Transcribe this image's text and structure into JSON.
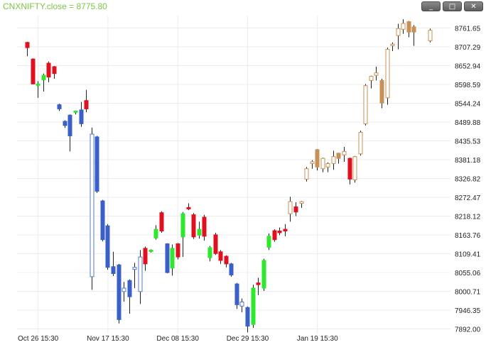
{
  "header": {
    "title": "CNXNIFTY.close = 8775.80",
    "buttons": [
      {
        "name": "minimize-button",
        "glyph": "_"
      },
      {
        "name": "maximize-button",
        "glyph": "□"
      },
      {
        "name": "close-button",
        "glyph": "✕"
      }
    ]
  },
  "colors": {
    "grid": "#ececec",
    "up_green": "#2ee82e",
    "down_red": "#e0101e",
    "blue": "#3a5fc8",
    "blue_hollow": "#5577cc",
    "tan": "#c79056",
    "wick": "#222222"
  },
  "chart_data": {
    "type": "candlestick",
    "title": "CNXNIFTY.close = 8775.80",
    "ylim": [
      7870,
      8800
    ],
    "y_ticks": [
      8761.65,
      8707.29,
      8652.94,
      8598.59,
      8544.24,
      8489.88,
      8435.53,
      8381.18,
      8326.82,
      8272.47,
      8218.12,
      8163.76,
      8109.41,
      8055.06,
      8000.71,
      7946.35,
      7892.0
    ],
    "x_ticks": [
      {
        "label": "Oct 26 15:30",
        "index": 2
      },
      {
        "label": "Nov 17 15:30",
        "index": 15
      },
      {
        "label": "Dec 08 15:30",
        "index": 28
      },
      {
        "label": "Dec 29 15:30",
        "index": 41
      },
      {
        "label": "Jan 19 15:30",
        "index": 54
      }
    ],
    "grid": true,
    "candles": [
      {
        "o": 8720,
        "h": 8722,
        "l": 8680,
        "c": 8705,
        "color": "red"
      },
      {
        "o": 8672,
        "h": 8674,
        "l": 8605,
        "c": 8600,
        "color": "red"
      },
      {
        "o": 8598,
        "h": 8608,
        "l": 8560,
        "c": 8600,
        "color": "green"
      },
      {
        "o": 8612,
        "h": 8630,
        "l": 8578,
        "c": 8625,
        "color": "green"
      },
      {
        "o": 8660,
        "h": 8665,
        "l": 8605,
        "c": 8620,
        "color": "red"
      },
      {
        "o": 8650,
        "h": 8652,
        "l": 8615,
        "c": 8630,
        "color": "red"
      },
      {
        "o": 8540,
        "h": 8543,
        "l": 8522,
        "c": 8528,
        "color": "blue"
      },
      {
        "o": 8492,
        "h": 8495,
        "l": 8473,
        "c": 8480,
        "color": "blue"
      },
      {
        "o": 8510,
        "h": 8512,
        "l": 8405,
        "c": 8450,
        "color": "blue"
      },
      {
        "o": 8522,
        "h": 8523,
        "l": 8512,
        "c": 8520,
        "color": "green"
      },
      {
        "o": 8525,
        "h": 8548,
        "l": 8476,
        "c": 8485,
        "color": "blue"
      },
      {
        "o": 8552,
        "h": 8583,
        "l": 8518,
        "c": 8528,
        "color": "red"
      },
      {
        "o": 8043,
        "h": 8474,
        "l": 8005,
        "c": 8455,
        "color": "blue_hollow"
      },
      {
        "o": 8447,
        "h": 8450,
        "l": 8285,
        "c": 8290,
        "color": "blue"
      },
      {
        "o": 8262,
        "h": 8265,
        "l": 8145,
        "c": 8150,
        "color": "blue"
      },
      {
        "o": 8190,
        "h": 8195,
        "l": 8063,
        "c": 8070,
        "color": "blue"
      },
      {
        "o": 8072,
        "h": 8115,
        "l": 8045,
        "c": 8052,
        "color": "blue"
      },
      {
        "o": 8077,
        "h": 8080,
        "l": 7908,
        "c": 7919,
        "color": "blue"
      },
      {
        "o": 8000,
        "h": 8028,
        "l": 7971,
        "c": 8010,
        "color": "blue_hollow"
      },
      {
        "o": 8032,
        "h": 8035,
        "l": 7936,
        "c": 7985,
        "color": "blue"
      },
      {
        "o": 8064,
        "h": 8083,
        "l": 8010,
        "c": 8070,
        "color": "blue_hollow"
      },
      {
        "o": 8000,
        "h": 8120,
        "l": 7964,
        "c": 8100,
        "color": "blue_hollow"
      },
      {
        "o": 8125,
        "h": 8130,
        "l": 8060,
        "c": 8080,
        "color": "red"
      },
      {
        "o": 8117,
        "h": 8122,
        "l": 8113,
        "c": 8120,
        "color": "green"
      },
      {
        "o": 8155,
        "h": 8192,
        "l": 8150,
        "c": 8180,
        "color": "green"
      },
      {
        "o": 8228,
        "h": 8232,
        "l": 8170,
        "c": 8175,
        "color": "red"
      },
      {
        "o": 8138,
        "h": 8140,
        "l": 8053,
        "c": 8055,
        "color": "blue"
      },
      {
        "o": 8068,
        "h": 8136,
        "l": 8046,
        "c": 8125,
        "color": "green"
      },
      {
        "o": 8138,
        "h": 8140,
        "l": 8093,
        "c": 8100,
        "color": "red"
      },
      {
        "o": 8158,
        "h": 8230,
        "l": 8100,
        "c": 8225,
        "color": "green"
      },
      {
        "o": 8243,
        "h": 8255,
        "l": 8235,
        "c": 8240,
        "color": "red"
      },
      {
        "o": 8222,
        "h": 8227,
        "l": 8152,
        "c": 8158,
        "color": "red"
      },
      {
        "o": 8163,
        "h": 8202,
        "l": 8153,
        "c": 8180,
        "color": "green"
      },
      {
        "o": 8215,
        "h": 8222,
        "l": 8147,
        "c": 8160,
        "color": "red"
      },
      {
        "o": 8127,
        "h": 8132,
        "l": 8087,
        "c": 8098,
        "color": "green"
      },
      {
        "o": 8164,
        "h": 8170,
        "l": 8106,
        "c": 8110,
        "color": "red"
      },
      {
        "o": 8115,
        "h": 8120,
        "l": 8080,
        "c": 8090,
        "color": "red"
      },
      {
        "o": 8102,
        "h": 8105,
        "l": 8070,
        "c": 8080,
        "color": "red"
      },
      {
        "o": 8080,
        "h": 8083,
        "l": 8043,
        "c": 8048,
        "color": "blue"
      },
      {
        "o": 8022,
        "h": 8025,
        "l": 7950,
        "c": 7962,
        "color": "blue"
      },
      {
        "o": 7958,
        "h": 7980,
        "l": 7940,
        "c": 7970,
        "color": "blue_hollow"
      },
      {
        "o": 7954,
        "h": 7957,
        "l": 7882,
        "c": 7900,
        "color": "blue"
      },
      {
        "o": 7905,
        "h": 8020,
        "l": 7895,
        "c": 8010,
        "color": "green"
      },
      {
        "o": 8025,
        "h": 8040,
        "l": 7990,
        "c": 8020,
        "color": "red"
      },
      {
        "o": 8010,
        "h": 8095,
        "l": 8002,
        "c": 8090,
        "color": "green"
      },
      {
        "o": 8128,
        "h": 8168,
        "l": 8120,
        "c": 8160,
        "color": "green"
      },
      {
        "o": 8176,
        "h": 8180,
        "l": 8144,
        "c": 8150,
        "color": "red"
      },
      {
        "o": 8175,
        "h": 8185,
        "l": 8163,
        "c": 8170,
        "color": "red"
      },
      {
        "o": 8175,
        "h": 8195,
        "l": 8160,
        "c": 8180,
        "color": "red"
      },
      {
        "o": 8225,
        "h": 8274,
        "l": 8202,
        "c": 8260,
        "color": "tan_hollow"
      },
      {
        "o": 8245,
        "h": 8258,
        "l": 8218,
        "c": 8230,
        "color": "red"
      },
      {
        "o": 8260,
        "h": 8262,
        "l": 8242,
        "c": 8255,
        "color": "tan_hollow"
      },
      {
        "o": 8325,
        "h": 8360,
        "l": 8318,
        "c": 8355,
        "color": "tan_hollow"
      },
      {
        "o": 8375,
        "h": 8380,
        "l": 8355,
        "c": 8370,
        "color": "tan_hollow"
      },
      {
        "o": 8410,
        "h": 8412,
        "l": 8350,
        "c": 8360,
        "color": "tan"
      },
      {
        "o": 8385,
        "h": 8387,
        "l": 8345,
        "c": 8355,
        "color": "tan_hollow"
      },
      {
        "o": 8360,
        "h": 8373,
        "l": 8345,
        "c": 8370,
        "color": "tan_hollow"
      },
      {
        "o": 8370,
        "h": 8407,
        "l": 8352,
        "c": 8390,
        "color": "tan_hollow"
      },
      {
        "o": 8400,
        "h": 8401,
        "l": 8370,
        "c": 8385,
        "color": "tan"
      },
      {
        "o": 8405,
        "h": 8418,
        "l": 8375,
        "c": 8395,
        "color": "tan_hollow"
      },
      {
        "o": 8385,
        "h": 8387,
        "l": 8310,
        "c": 8325,
        "color": "red"
      },
      {
        "o": 8323,
        "h": 8392,
        "l": 8315,
        "c": 8390,
        "color": "tan_hollow"
      },
      {
        "o": 8398,
        "h": 8465,
        "l": 8393,
        "c": 8460,
        "color": "tan_hollow"
      },
      {
        "o": 8485,
        "h": 8600,
        "l": 8480,
        "c": 8595,
        "color": "tan_hollow"
      },
      {
        "o": 8610,
        "h": 8624,
        "l": 8587,
        "c": 8622,
        "color": "tan_hollow"
      },
      {
        "o": 8625,
        "h": 8650,
        "l": 8610,
        "c": 8632,
        "color": "tan_hollow"
      },
      {
        "o": 8610,
        "h": 8615,
        "l": 8530,
        "c": 8545,
        "color": "tan"
      },
      {
        "o": 8560,
        "h": 8705,
        "l": 8540,
        "c": 8700,
        "color": "tan_hollow"
      },
      {
        "o": 8712,
        "h": 8720,
        "l": 8695,
        "c": 8715,
        "color": "tan_hollow"
      },
      {
        "o": 8740,
        "h": 8774,
        "l": 8700,
        "c": 8760,
        "color": "tan_hollow"
      },
      {
        "o": 8758,
        "h": 8787,
        "l": 8745,
        "c": 8775,
        "color": "tan_hollow"
      },
      {
        "o": 8780,
        "h": 8782,
        "l": 8735,
        "c": 8750,
        "color": "tan"
      },
      {
        "o": 8765,
        "h": 8770,
        "l": 8710,
        "c": 8750,
        "color": "tan"
      },
      {
        "o": null,
        "h": null,
        "l": null,
        "c": null,
        "color": "none"
      },
      {
        "o": null,
        "h": null,
        "l": null,
        "c": null,
        "color": "none"
      },
      {
        "o": 8725,
        "h": 8760,
        "l": 8720,
        "c": 8755,
        "color": "tan_hollow"
      }
    ]
  }
}
